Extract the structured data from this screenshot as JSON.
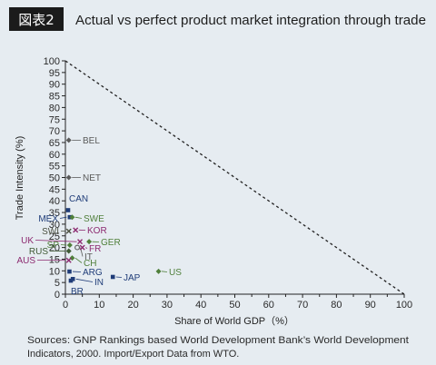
{
  "header": {
    "badge": "図表2"
  },
  "colors": {
    "background": "#e6ecf1",
    "badge": "#1b1b1b",
    "axis": "#222222",
    "reference_line": "#222222"
  },
  "chart_data": {
    "type": "scatter",
    "title": "Actual vs perfect product market integration through trade",
    "xlabel": "Share of World GDP（%）",
    "ylabel": "Trade Intensity (%)",
    "xlim": [
      0,
      100
    ],
    "ylim": [
      0,
      100
    ],
    "xticks": [
      0,
      10,
      20,
      30,
      40,
      50,
      60,
      70,
      80,
      90,
      100
    ],
    "yticks": [
      0,
      5,
      10,
      15,
      20,
      25,
      30,
      35,
      40,
      45,
      50,
      55,
      60,
      65,
      70,
      75,
      80,
      85,
      90,
      95,
      100
    ],
    "grid": false,
    "reference_line": {
      "style": "dashed",
      "x": [
        0,
        100
      ],
      "y": [
        100,
        0
      ]
    },
    "points": [
      {
        "label": "BEL",
        "x": 1.0,
        "y": 66.0,
        "marker": "diamond",
        "color": "#5a5a5a"
      },
      {
        "label": "NET",
        "x": 1.0,
        "y": 50.0,
        "marker": "diamond",
        "color": "#5a5a5a"
      },
      {
        "label": "CAN",
        "x": 0.8,
        "y": 36.0,
        "marker": "square",
        "color": "#1f3c78"
      },
      {
        "label": "MEX",
        "x": 1.3,
        "y": 33.0,
        "marker": "square",
        "color": "#1f3c78"
      },
      {
        "label": "SWE",
        "x": 2.0,
        "y": 33.0,
        "marker": "diamond",
        "color": "#4f7f3a"
      },
      {
        "label": "SWI",
        "x": 1.0,
        "y": 27.0,
        "marker": "cross",
        "color": "#4a4f3f"
      },
      {
        "label": "KOR",
        "x": 3.0,
        "y": 27.5,
        "marker": "cross",
        "color": "#8c2a70"
      },
      {
        "label": "UK",
        "x": 4.3,
        "y": 22.5,
        "marker": "cross",
        "color": "#8c2a70"
      },
      {
        "label": "GER",
        "x": 7.0,
        "y": 22.5,
        "marker": "diamond",
        "color": "#4f7f3a"
      },
      {
        "label": "SP",
        "x": 1.3,
        "y": 21.0,
        "marker": "diamond",
        "color": "#4f7f3a"
      },
      {
        "label": "FR",
        "x": 5.0,
        "y": 20.0,
        "marker": "cross",
        "color": "#8c2a70"
      },
      {
        "label": "IT",
        "x": 3.5,
        "y": 20.0,
        "marker": "circle",
        "color": "#5a5a5a"
      },
      {
        "label": "RUS",
        "x": 1.0,
        "y": 18.5,
        "marker": "diamond",
        "color": "#3f5a35"
      },
      {
        "label": "CH",
        "x": 2.0,
        "y": 15.5,
        "marker": "diamond",
        "color": "#4f7f3a"
      },
      {
        "label": "AUS",
        "x": 1.0,
        "y": 14.5,
        "marker": "cross",
        "color": "#8c2a70"
      },
      {
        "label": "ARG",
        "x": 1.2,
        "y": 9.7,
        "marker": "square",
        "color": "#1f3c78"
      },
      {
        "label": "IN",
        "x": 2.2,
        "y": 6.5,
        "marker": "square",
        "color": "#1f3c78"
      },
      {
        "label": "BR",
        "x": 1.6,
        "y": 5.8,
        "marker": "square",
        "color": "#1f3c78"
      },
      {
        "label": "JAP",
        "x": 14.0,
        "y": 7.4,
        "marker": "square",
        "color": "#1f3c78"
      },
      {
        "label": "US",
        "x": 27.5,
        "y": 9.8,
        "marker": "diamond",
        "color": "#4f7f3a"
      }
    ]
  },
  "source": {
    "lines": [
      "Sources: GNP Rankings based World Development Bank’s World Development",
      "Indicators, 2000. Import/Export Data from WTO."
    ]
  }
}
